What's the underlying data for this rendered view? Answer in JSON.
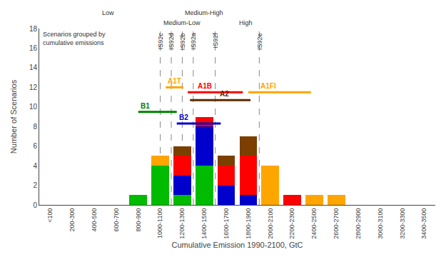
{
  "chart_data": {
    "type": "bar",
    "stacked": true,
    "grid": false,
    "xlabel": "Cumulative Emission 1990-2100, GtC",
    "ylabel": "Number of Scenarios",
    "top_label": [
      "Scenarios grouped by",
      "cumulative emissions"
    ],
    "categories": [
      "<100",
      "200-300",
      "400-500",
      "600-700",
      "800-900",
      "1000-1100",
      "1200-1300",
      "1400-1500",
      "1600-1700",
      "1800-1900",
      "2000-2100",
      "2200-2300",
      "2400-2500",
      "2600-2700",
      "2800-2900",
      "3000-3100",
      "3200-3300",
      "3400-3500"
    ],
    "bin_centers": [
      50,
      250,
      450,
      650,
      850,
      1050,
      1250,
      1450,
      1650,
      1850,
      2050,
      2250,
      2450,
      2650,
      2850,
      3050,
      3250,
      3450
    ],
    "series": [
      {
        "color": "#00BB00",
        "values": [
          0,
          0,
          0,
          0,
          1,
          4,
          1,
          4,
          0,
          0,
          0,
          0,
          0,
          0,
          0,
          0,
          0,
          0
        ]
      },
      {
        "color": "#0000CD",
        "values": [
          0,
          0,
          0,
          0,
          0,
          0,
          2,
          4,
          2,
          1,
          0,
          0,
          0,
          0,
          0,
          0,
          0,
          0
        ]
      },
      {
        "color": "#FF0000",
        "values": [
          0,
          0,
          0,
          0,
          0,
          0,
          2,
          1,
          2,
          4,
          0,
          1,
          0,
          0,
          0,
          0,
          0,
          0
        ]
      },
      {
        "color": "#7B3F00",
        "values": [
          0,
          0,
          0,
          0,
          0,
          0,
          1,
          0,
          1,
          2,
          0,
          0,
          0,
          0,
          0,
          0,
          0,
          0
        ]
      },
      {
        "color": "#FFA500",
        "values": [
          0,
          0,
          0,
          0,
          0,
          1,
          0,
          0,
          0,
          0,
          4,
          0,
          1,
          1,
          0,
          0,
          0,
          0
        ]
      }
    ],
    "ylim": [
      0,
      18
    ],
    "yticks": [
      0,
      2,
      4,
      6,
      8,
      10,
      12,
      14,
      16,
      18
    ],
    "scenario_lines": [
      {
        "label": "IS92c",
        "x": 1050
      },
      {
        "label": "IS92d",
        "x": 1150
      },
      {
        "label": "IS92b",
        "x": 1250
      },
      {
        "label": "IS92a",
        "x": 1350
      },
      {
        "label": "IS92f",
        "x": 1550
      },
      {
        "label": "IS92e",
        "x": 1950
      }
    ],
    "scenario_ranges": [
      {
        "label": "A1T",
        "y": 12.0,
        "x1": 1100,
        "x2": 1260,
        "color": "#FFA500",
        "label_x": 1105,
        "label_color": "#FFA500"
      },
      {
        "label": "B1",
        "y": 9.5,
        "x1": 850,
        "x2": 1200,
        "color": "#008000",
        "label_x": 858,
        "label_color": "#008000"
      },
      {
        "label": "B2",
        "y": 8.3,
        "x1": 1200,
        "x2": 1600,
        "color": "#0000CD",
        "label_x": 1208,
        "label_color": "#0000CD"
      },
      {
        "label": "A1B",
        "y": 11.5,
        "x1": 1300,
        "x2": 1800,
        "color": "#FF0000",
        "label_x": 1380,
        "label_color": "#FF0000"
      },
      {
        "label": "A2",
        "y": 10.7,
        "x1": 1320,
        "x2": 1870,
        "color": "#5C2A00",
        "label_x": 1580,
        "label_color": "#5C2A00"
      },
      {
        "label": "A1FI",
        "y": 11.5,
        "x1": 1850,
        "x2": 2420,
        "color": "#FFA500",
        "label_x": 1950,
        "label_color": "#FFA500"
      }
    ],
    "group_regions": [
      {
        "label": "Low",
        "x1": 0,
        "x2": 1150
      },
      {
        "label": "Medium-Low",
        "x1": 1150,
        "x2": 1350
      },
      {
        "label": "Medium-High",
        "x1": 1350,
        "x2": 1550
      },
      {
        "label": "High",
        "x1": 1550,
        "x2": 2100
      }
    ]
  }
}
